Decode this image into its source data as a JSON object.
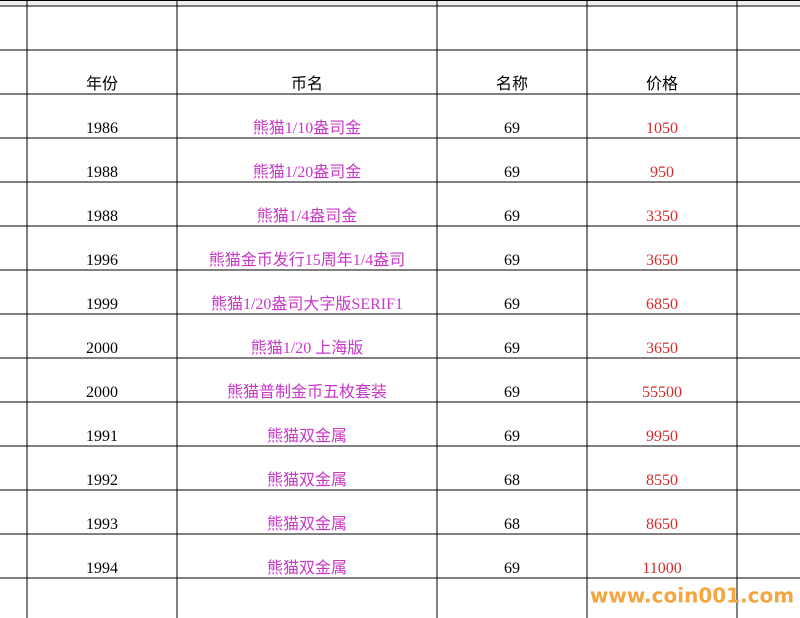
{
  "table": {
    "header": [
      "年份",
      "币名",
      "名称",
      "价格"
    ],
    "rows": [
      [
        1986,
        "熊猫1/10盎司金",
        69,
        1050
      ],
      [
        1988,
        "熊猫1/20盎司金",
        69,
        950
      ],
      [
        1988,
        "熊猫1/4盎司金",
        69,
        3350
      ],
      [
        1996,
        "熊猫金币发行15周年1/4盎司",
        69,
        3650
      ],
      [
        1999,
        "熊猫1/20盎司大字版SERIF1",
        69,
        6850
      ],
      [
        2000,
        "熊猫1/20 上海版",
        69,
        3650
      ],
      [
        2000,
        "熊猫普制金币五枚套装",
        69,
        55500
      ],
      [
        1991,
        "熊猫双金属",
        69,
        9950
      ],
      [
        1992,
        "熊猫双金属",
        68,
        8550
      ],
      [
        1993,
        "熊猫双金属",
        68,
        8650
      ],
      [
        1994,
        "熊猫双金属",
        69,
        11000
      ]
    ]
  },
  "watermark": "www.coin001.com"
}
